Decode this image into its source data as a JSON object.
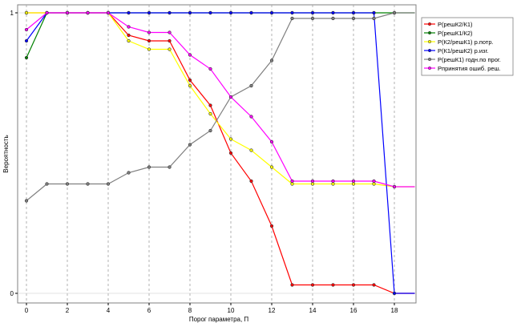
{
  "chart_data": {
    "type": "line",
    "xlabel": "Порог параметра, П",
    "ylabel": "Вероятность",
    "xlim": [
      -0.4,
      19.0
    ],
    "ylim": [
      0,
      1
    ],
    "x_ticks": [
      0,
      2,
      4,
      6,
      8,
      10,
      12,
      14,
      16,
      18
    ],
    "y_ticks": [
      0,
      1
    ],
    "grid": "vertical-dashed",
    "legend_position": "right",
    "x": [
      0,
      1,
      2,
      3,
      4,
      5,
      6,
      7,
      8,
      9,
      10,
      11,
      12,
      13,
      14,
      15,
      16,
      17,
      18,
      19
    ],
    "series": [
      {
        "name": "P(решК2/К1)",
        "color": "#ff0000",
        "values": [
          1.0,
          1.0,
          1.0,
          1.0,
          1.0,
          0.92,
          0.9,
          0.9,
          0.76,
          0.67,
          0.5,
          0.4,
          0.24,
          0.03,
          0.03,
          0.03,
          0.03,
          0.03,
          0.0,
          0.0
        ]
      },
      {
        "name": "P(решК1/К2)",
        "color": "#008000",
        "values": [
          0.84,
          1.0,
          1.0,
          1.0,
          1.0,
          1.0,
          1.0,
          1.0,
          1.0,
          1.0,
          1.0,
          1.0,
          1.0,
          1.0,
          1.0,
          1.0,
          1.0,
          1.0,
          1.0,
          1.0
        ]
      },
      {
        "name": "P(К2/решК1) р.потр.",
        "color": "#ffff00",
        "values": [
          1.0,
          1.0,
          1.0,
          1.0,
          1.0,
          0.9,
          0.87,
          0.87,
          0.74,
          0.64,
          0.55,
          0.51,
          0.45,
          0.39,
          0.39,
          0.39,
          0.39,
          0.39,
          0.38,
          0.38
        ]
      },
      {
        "name": "P(К1/решК2) р.изг.",
        "color": "#0000ff",
        "values": [
          0.9,
          1.0,
          1.0,
          1.0,
          1.0,
          1.0,
          1.0,
          1.0,
          1.0,
          1.0,
          1.0,
          1.0,
          1.0,
          1.0,
          1.0,
          1.0,
          1.0,
          1.0,
          0.0,
          0.0
        ]
      },
      {
        "name": "P(решК1) годн.по прог.",
        "color": "#808080",
        "values": [
          0.33,
          0.39,
          0.39,
          0.39,
          0.39,
          0.43,
          0.45,
          0.45,
          0.53,
          0.58,
          0.7,
          0.74,
          0.83,
          0.98,
          0.98,
          0.98,
          0.98,
          0.98,
          1.0,
          1.0
        ]
      },
      {
        "name": "Рпринятия ошиб. реш.",
        "color": "#ff00ff",
        "values": [
          0.94,
          1.0,
          1.0,
          1.0,
          1.0,
          0.95,
          0.93,
          0.93,
          0.85,
          0.8,
          0.7,
          0.63,
          0.54,
          0.4,
          0.4,
          0.4,
          0.4,
          0.4,
          0.38,
          0.38
        ]
      }
    ]
  }
}
